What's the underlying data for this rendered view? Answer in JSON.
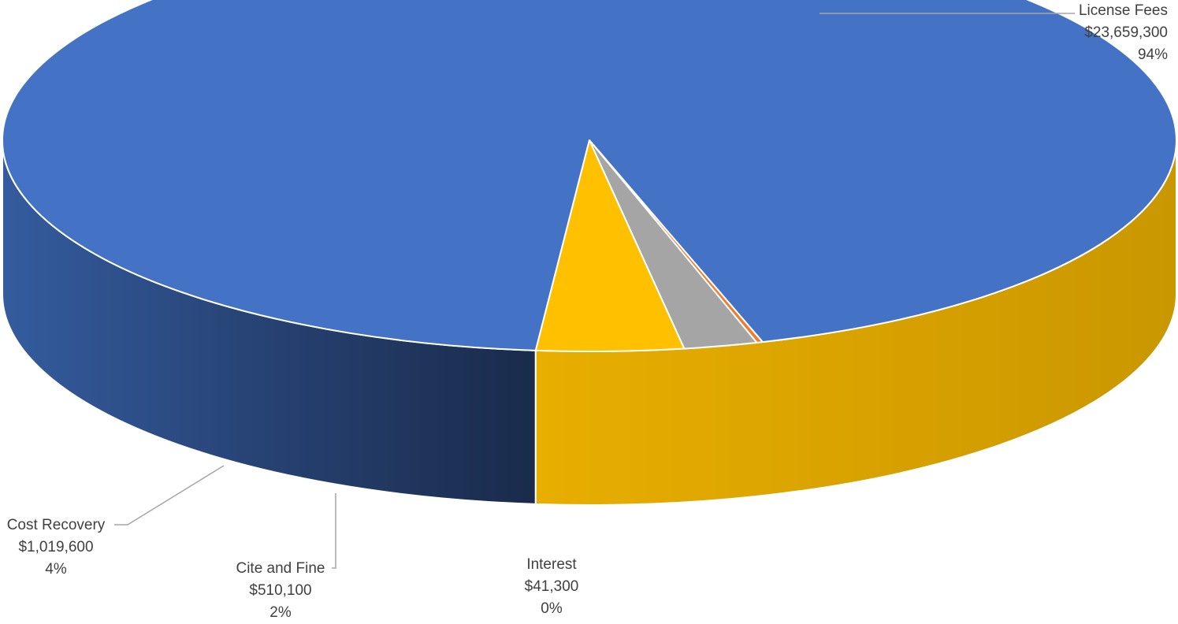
{
  "chart_data": {
    "type": "pie",
    "title": "",
    "legend": "none",
    "slices": [
      {
        "label": "License Fees",
        "value": 23659300,
        "value_text": "$23,659,300",
        "percent_text": "94%",
        "color": "#4472C4",
        "side_dark": "#1C2F52",
        "side_light": "#3F65AE"
      },
      {
        "label": "Interest",
        "value": 41300,
        "value_text": "$41,300",
        "percent_text": "0%",
        "color": "#ED7D31",
        "side_dark": "#B0561A",
        "side_light": "#D36A25"
      },
      {
        "label": "Cite and Fine",
        "value": 510100,
        "value_text": "$510,100",
        "percent_text": "2%",
        "color": "#A5A5A5",
        "side_dark": "#7E7E7E",
        "side_light": "#999999"
      },
      {
        "label": "Cost Recovery",
        "value": 1019600,
        "value_text": "$1,019,600",
        "percent_text": "4%",
        "color": "#FFC000",
        "side_dark": "#CC9600",
        "side_light": "#E8AD00"
      }
    ]
  }
}
